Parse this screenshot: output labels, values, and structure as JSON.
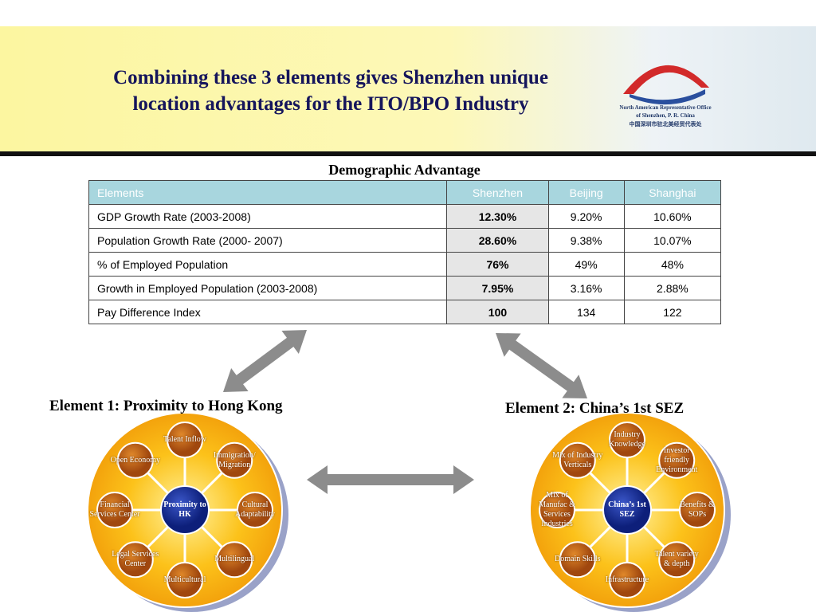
{
  "header": {
    "title_lines": [
      "Combining these 3 elements gives Shenzhen unique",
      "location advantages for the ITO/BPO Industry"
    ],
    "logo_lines": [
      "North American Representative Office",
      "of Shenzhen, P. R. China",
      "中国深圳市驻北美经贸代表处"
    ]
  },
  "table": {
    "title": "Demographic Advantage",
    "columns": [
      "Elements",
      "Shenzhen",
      "Beijing",
      "Shanghai"
    ],
    "rows": [
      [
        "GDP Growth Rate (2003-2008)",
        "12.30%",
        "9.20%",
        "10.60%"
      ],
      [
        "Population Growth Rate (2000- 2007)",
        "28.60%",
        "9.38%",
        "10.07%"
      ],
      [
        "% of Employed Population",
        "76%",
        "49%",
        "48%"
      ],
      [
        "Growth in Employed Population (2003-2008)",
        "7.95%",
        "3.16%",
        "2.88%"
      ],
      [
        "Pay Difference Index",
        "100",
        "134",
        "122"
      ]
    ]
  },
  "elements": [
    {
      "title": "Element 1: Proximity to Hong Kong",
      "center": "Proximity to HK",
      "nodes": [
        "Talent Inflow",
        "Immigration/ Migration",
        "Cultural Adaptability",
        "Multilingual",
        "Multicultural",
        "Legal Services Center",
        "Financial Services Center",
        "Open Economy"
      ]
    },
    {
      "title": "Element 2: China’s 1st SEZ",
      "center": "China’s 1st SEZ",
      "nodes": [
        "Industry Knowledge",
        "Investor friendly Environment",
        "Benefits & SOPs",
        "Talent variety & depth",
        "Infrastructure",
        "Domain Skills",
        "Mix of Manufac & Services Industries",
        "Mix of Industry Verticals"
      ]
    }
  ]
}
